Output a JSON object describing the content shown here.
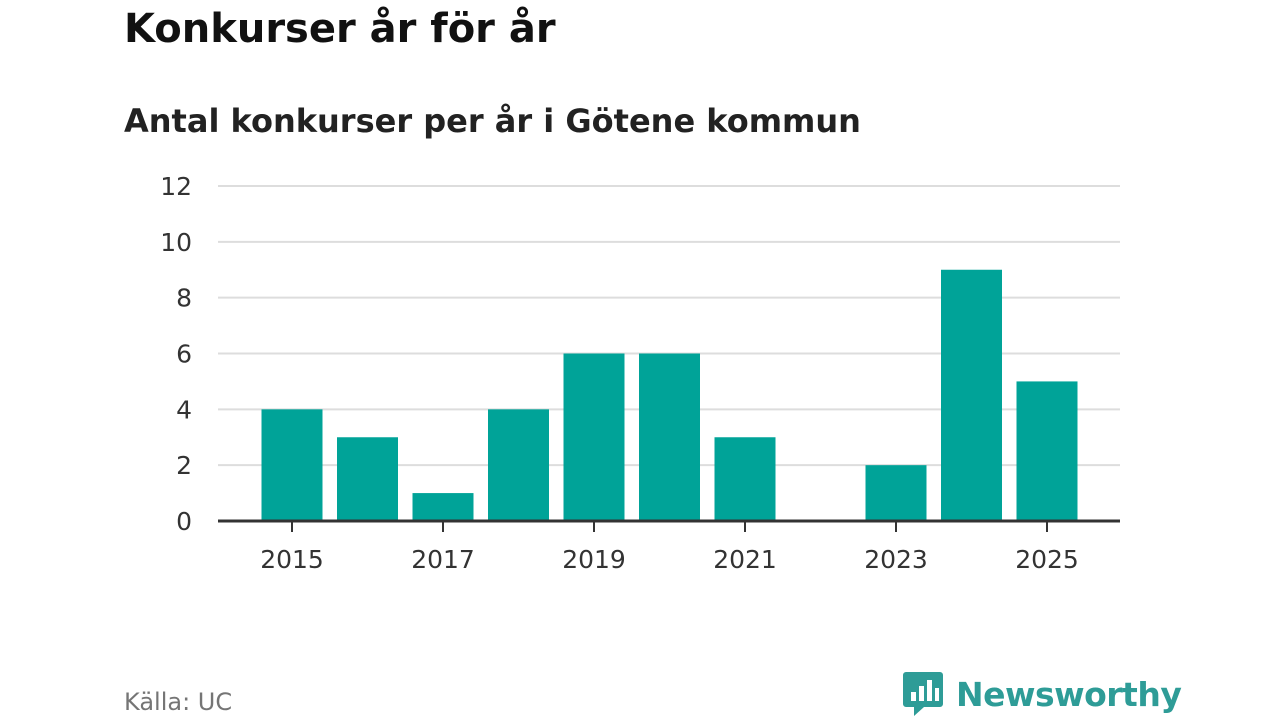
{
  "title": "Konkurser år för år",
  "subtitle": "Antal konkurser per år i Götene kommun",
  "source": "Källa: UC",
  "brand": {
    "name": "Newsworthy",
    "icon": "newsworthy-logo-icon",
    "color": "#2e9c97"
  },
  "colors": {
    "bar": "#00a398",
    "grid": "#dddddd",
    "axis": "#333333"
  },
  "chart_data": {
    "type": "bar",
    "title": "Konkurser år för år",
    "subtitle": "Antal konkurser per år i Götene kommun",
    "xlabel": "",
    "ylabel": "",
    "categories": [
      "2015",
      "2016",
      "2017",
      "2018",
      "2019",
      "2020",
      "2021",
      "2022",
      "2023",
      "2024",
      "2025"
    ],
    "values": [
      4,
      3,
      1,
      4,
      6,
      6,
      3,
      0,
      2,
      9,
      5
    ],
    "x_tick_labels": [
      "2015",
      "2017",
      "2019",
      "2021",
      "2023",
      "2025"
    ],
    "y_ticks": [
      0,
      2,
      4,
      6,
      8,
      10,
      12
    ],
    "ylim": [
      0,
      12
    ],
    "grid": true
  }
}
